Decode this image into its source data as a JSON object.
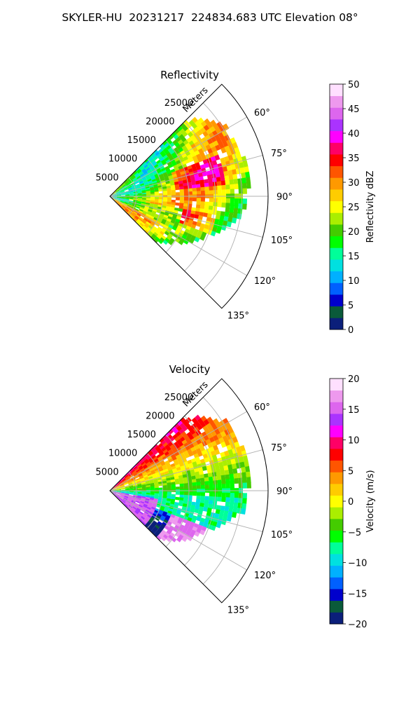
{
  "title": "SKYLER-HU  20231217  224834.683 UTC Elevation 08°",
  "chart_data": [
    {
      "type": "heatmap",
      "subtype": "polar-sector",
      "title": "Reflectivity",
      "radial_label": "Meters",
      "radial_ticks": [
        5000,
        10000,
        15000,
        20000,
        25000
      ],
      "radial_tick_labels": [
        "5000",
        "10000",
        "15000",
        "20000",
        "25000"
      ],
      "angular_ticks": [
        60,
        75,
        90,
        105,
        120,
        135
      ],
      "angular_tick_labels": [
        "60°",
        "75°",
        "90°",
        "105°",
        "120°",
        "135°"
      ],
      "azimuth_range": [
        45,
        135
      ],
      "range_limits": [
        0,
        30000
      ],
      "grid": true,
      "colorbar": {
        "label": "Reflectivity dBZ",
        "range": [
          0,
          50
        ],
        "ticks": [
          0,
          5,
          10,
          15,
          20,
          25,
          30,
          35,
          40,
          45,
          50
        ],
        "tick_labels": [
          "0",
          "5",
          "10",
          "15",
          "20",
          "25",
          "30",
          "35",
          "40",
          "45",
          "50"
        ],
        "colors": [
          "#0b1f7a",
          "#0a5a3a",
          "#0000cc",
          "#0060ff",
          "#00b0ff",
          "#00e0e0",
          "#00ff99",
          "#00ff00",
          "#44cc00",
          "#aaee00",
          "#ffff00",
          "#ffcc00",
          "#ff9900",
          "#ff5500",
          "#ff0000",
          "#ff0066",
          "#ff00ff",
          "#aa33ff",
          "#dd66ee",
          "#ee99ee",
          "#ffe0ff"
        ]
      }
    },
    {
      "type": "heatmap",
      "subtype": "polar-sector",
      "title": "Velocity",
      "radial_label": "Meters",
      "radial_ticks": [
        5000,
        10000,
        15000,
        20000,
        25000
      ],
      "radial_tick_labels": [
        "5000",
        "10000",
        "15000",
        "20000",
        "25000"
      ],
      "angular_ticks": [
        60,
        75,
        90,
        105,
        120,
        135
      ],
      "angular_tick_labels": [
        "60°",
        "75°",
        "90°",
        "105°",
        "120°",
        "135°"
      ],
      "azimuth_range": [
        45,
        135
      ],
      "range_limits": [
        0,
        30000
      ],
      "grid": true,
      "colorbar": {
        "label": "Velocity (m/s)",
        "range": [
          -20,
          20
        ],
        "ticks": [
          -20,
          -15,
          -10,
          -5,
          0,
          5,
          10,
          15,
          20
        ],
        "tick_labels": [
          "−20",
          "−15",
          "−10",
          "−5",
          "0",
          "5",
          "10",
          "15",
          "20"
        ],
        "colors": [
          "#0b1f7a",
          "#0a5a3a",
          "#0000cc",
          "#0060ff",
          "#00b0ff",
          "#00e0e0",
          "#00ff99",
          "#00ff00",
          "#44cc00",
          "#aaee00",
          "#ffff00",
          "#ffcc00",
          "#ff9900",
          "#ff5500",
          "#ff0000",
          "#ff0066",
          "#ff00ff",
          "#aa33ff",
          "#dd66ee",
          "#ee99ee",
          "#ffe0ff"
        ]
      }
    }
  ]
}
